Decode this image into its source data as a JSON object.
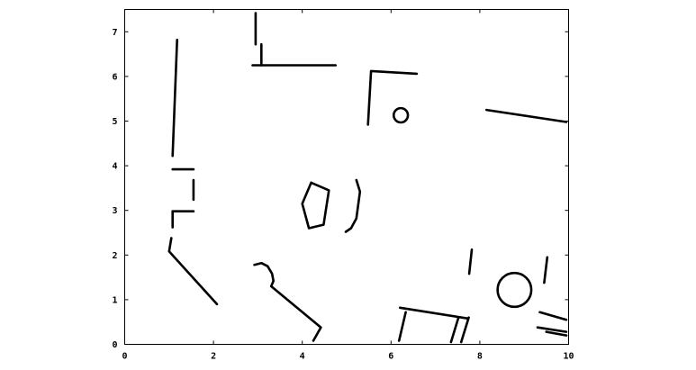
{
  "chart_data": {
    "type": "line",
    "title": "",
    "xlabel": "",
    "ylabel": "",
    "xlim": [
      0,
      10
    ],
    "ylim": [
      0,
      7.5
    ],
    "grid": false,
    "x_ticks": [
      "0",
      "2",
      "4",
      "6",
      "8",
      "10"
    ],
    "y_ticks": [
      "0",
      "1",
      "2",
      "3",
      "4",
      "5",
      "6",
      "7"
    ],
    "x_tick_values": [
      0,
      2,
      4,
      6,
      8,
      10
    ],
    "y_tick_values": [
      0,
      1,
      2,
      3,
      4,
      5,
      6,
      7
    ],
    "series": [
      {
        "points": [
          [
            1.18,
            6.82
          ],
          [
            1.08,
            4.22
          ]
        ]
      },
      {
        "points": [
          [
            2.95,
            7.42
          ],
          [
            2.95,
            6.72
          ]
        ]
      },
      {
        "points": [
          [
            3.08,
            6.72
          ],
          [
            3.08,
            6.25
          ]
        ]
      },
      {
        "points": [
          [
            2.88,
            6.25
          ],
          [
            4.75,
            6.25
          ]
        ]
      },
      {
        "points": [
          [
            5.48,
            4.92
          ],
          [
            5.55,
            6.12
          ],
          [
            6.58,
            6.06
          ]
        ]
      },
      {
        "points": [
          [
            8.15,
            5.25
          ],
          [
            9.95,
            4.98
          ]
        ]
      },
      {
        "points": [
          [
            1.08,
            3.92
          ],
          [
            1.55,
            3.92
          ]
        ]
      },
      {
        "points": [
          [
            1.55,
            3.68
          ],
          [
            1.55,
            3.24
          ]
        ]
      },
      {
        "points": [
          [
            1.08,
            2.98
          ],
          [
            1.55,
            2.98
          ]
        ]
      },
      {
        "points": [
          [
            1.08,
            2.98
          ],
          [
            1.08,
            2.62
          ]
        ]
      },
      {
        "points": [
          [
            1.05,
            2.38
          ],
          [
            1.0,
            2.08
          ],
          [
            2.08,
            0.9
          ]
        ]
      },
      {
        "points": [
          [
            4.2,
            3.62
          ],
          [
            4.6,
            3.45
          ],
          [
            4.48,
            2.68
          ],
          [
            4.15,
            2.6
          ],
          [
            4.0,
            3.15
          ],
          [
            4.2,
            3.62
          ]
        ]
      },
      {
        "points": [
          [
            5.22,
            3.68
          ],
          [
            5.3,
            3.42
          ],
          [
            5.22,
            2.82
          ],
          [
            5.1,
            2.6
          ],
          [
            4.98,
            2.52
          ]
        ]
      },
      {
        "points": [
          [
            2.92,
            1.78
          ],
          [
            3.08,
            1.82
          ],
          [
            3.22,
            1.75
          ],
          [
            3.32,
            1.58
          ],
          [
            3.35,
            1.42
          ],
          [
            3.3,
            1.3
          ],
          [
            4.42,
            0.38
          ],
          [
            4.25,
            0.08
          ]
        ]
      },
      {
        "points": [
          [
            6.18,
            0.08
          ],
          [
            6.33,
            0.72
          ]
        ]
      },
      {
        "points": [
          [
            6.2,
            0.82
          ],
          [
            7.72,
            0.58
          ]
        ]
      },
      {
        "points": [
          [
            7.35,
            0.05
          ],
          [
            7.52,
            0.6
          ]
        ]
      },
      {
        "points": [
          [
            7.58,
            0.05
          ],
          [
            7.75,
            0.6
          ]
        ]
      },
      {
        "points": [
          [
            7.82,
            2.12
          ],
          [
            7.76,
            1.58
          ]
        ]
      },
      {
        "points": [
          [
            9.52,
            1.95
          ],
          [
            9.45,
            1.38
          ]
        ]
      },
      {
        "points": [
          [
            9.35,
            0.72
          ],
          [
            9.95,
            0.55
          ]
        ]
      },
      {
        "points": [
          [
            9.3,
            0.38
          ],
          [
            9.95,
            0.28
          ]
        ]
      },
      {
        "points": [
          [
            9.5,
            0.28
          ],
          [
            9.95,
            0.2
          ]
        ]
      }
    ],
    "circles": [
      {
        "x": 6.22,
        "y": 5.13,
        "r": 0.16
      },
      {
        "x": 8.78,
        "y": 1.22,
        "r": 0.38
      }
    ]
  }
}
